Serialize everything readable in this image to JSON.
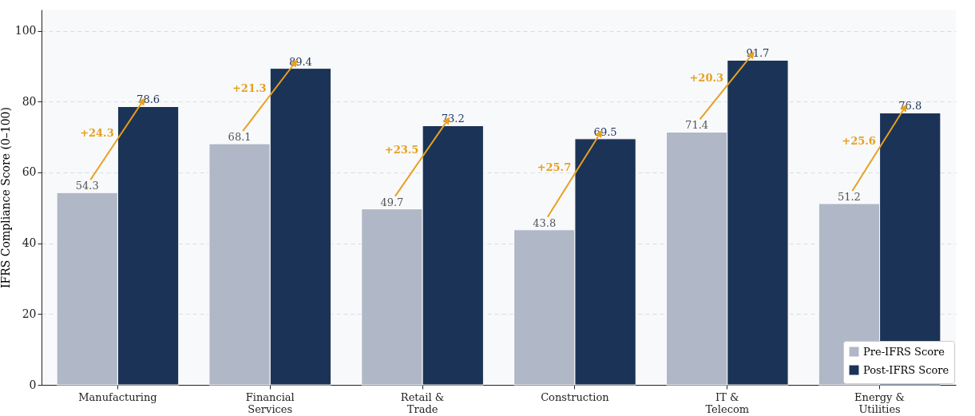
{
  "chart_data": {
    "type": "bar",
    "ylabel": "IFRS Compliance Score (0–100)",
    "categories": [
      "Manufacturing",
      "Financial Services",
      "Retail & Trade",
      "Construction",
      "IT & Telecom",
      "Energy & Utilities"
    ],
    "series": [
      {
        "name": "Pre-IFRS Score",
        "color": "#b0b7c6",
        "values": [
          54.3,
          68.1,
          49.7,
          43.8,
          71.4,
          51.2
        ]
      },
      {
        "name": "Post-IFRS Score",
        "color": "#1b3356",
        "values": [
          78.6,
          89.4,
          73.2,
          69.5,
          91.7,
          76.8
        ]
      }
    ],
    "annotations": [
      {
        "text": "+24.3",
        "x": "Manufacturing",
        "y": 71
      },
      {
        "text": "+21.3",
        "x": "Financial Services",
        "y": 83.7
      },
      {
        "text": "+23.5",
        "x": "Retail & Trade",
        "y": 66.4
      },
      {
        "text": "+25.7",
        "x": "Construction",
        "y": 61.4
      },
      {
        "text": "+20.3",
        "x": "IT & Telecom",
        "y": 86.5
      },
      {
        "text": "+25.6",
        "x": "Energy & Utilities",
        "y": 68.8
      }
    ],
    "ylim": [
      0,
      106
    ],
    "yticks": [
      0,
      20,
      40,
      60,
      80,
      100
    ],
    "grid": "y",
    "data_labels": true,
    "legend": "bottom right"
  }
}
